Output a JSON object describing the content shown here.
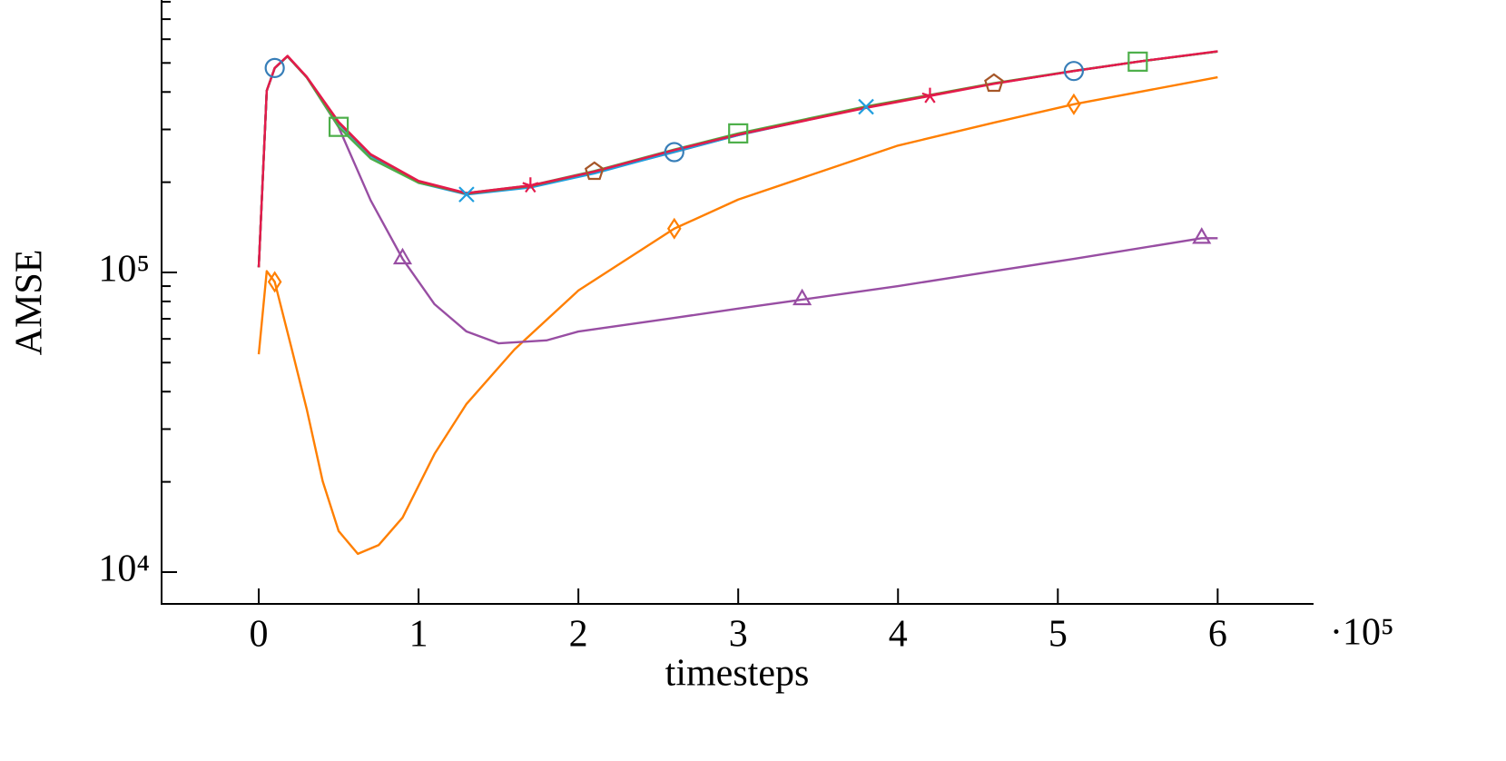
{
  "chart_data": {
    "type": "line",
    "xlabel": "timesteps",
    "ylabel": "AMSE",
    "x_scale_label": "·10⁵",
    "xlim": [
      -60800,
      660000
    ],
    "ylim": [
      7830,
      811000
    ],
    "yscale": "log",
    "xticks": [
      0,
      {
        "value": 100000,
        "label": "1"
      },
      {
        "value": 200000,
        "label": "2"
      },
      {
        "value": 300000,
        "label": "3"
      },
      {
        "value": 400000,
        "label": "4"
      },
      {
        "value": 500000,
        "label": "5"
      },
      {
        "value": 600000,
        "label": "6"
      }
    ],
    "yticks": [
      {
        "value": 10000,
        "label": "10⁴"
      },
      {
        "value": 100000,
        "label": "10⁵"
      }
    ],
    "yminorticks": [
      20000,
      30000,
      40000,
      50000,
      60000,
      70000,
      80000,
      90000,
      200000,
      300000,
      400000,
      500000,
      600000,
      700000,
      800000
    ],
    "series": [
      {
        "color": "#ff7f00",
        "marker": "diamond",
        "marker_indices": [
          2,
          14,
          18
        ],
        "x": [
          0,
          5000,
          10000,
          20000,
          30000,
          40000,
          50000,
          62000,
          75000,
          90000,
          110000,
          130000,
          160000,
          200000,
          260000,
          300000,
          400000,
          460000,
          510000,
          600000
        ],
        "values": [
          53300,
          101000,
          93000,
          57300,
          35000,
          20100,
          13700,
          11500,
          12300,
          15200,
          24800,
          36400,
          55300,
          87000,
          140000,
          175000,
          265000,
          316000,
          364000,
          448000
        ]
      },
      {
        "color": "#984ea3",
        "marker": "triangle",
        "marker_indices": [
          7,
          15,
          19
        ],
        "x": [
          0,
          5000,
          10000,
          18000,
          30000,
          50000,
          70000,
          90000,
          110000,
          130000,
          150000,
          180000,
          200000,
          260000,
          300000,
          340000,
          400000,
          460000,
          510000,
          590000,
          600000
        ],
        "values": [
          104000,
          404000,
          481000,
          526000,
          448000,
          305000,
          174000,
          111000,
          78300,
          63500,
          58000,
          59300,
          63500,
          70500,
          75700,
          81100,
          90000,
          101000,
          111000,
          130000,
          130000
        ]
      },
      {
        "color": "#377eb8",
        "marker": "circle",
        "marker_indices": [
          2,
          11,
          16
        ],
        "x": [
          0,
          5000,
          10000,
          18000,
          30000,
          50000,
          70000,
          100000,
          130000,
          170000,
          210000,
          260000,
          300000,
          380000,
          420000,
          460000,
          510000,
          550000,
          600000
        ],
        "values": [
          104000,
          404000,
          481000,
          526000,
          448000,
          316000,
          247000,
          201000,
          183000,
          194000,
          215000,
          252000,
          287000,
          356000,
          390000,
          427000,
          470000,
          505000,
          546000
        ]
      },
      {
        "color": "#1f9ede",
        "marker": "cross",
        "marker_indices": [
          8,
          13
        ],
        "x": [
          0,
          5000,
          10000,
          18000,
          30000,
          50000,
          70000,
          100000,
          130000,
          170000,
          210000,
          260000,
          300000,
          380000,
          420000,
          460000,
          510000,
          550000,
          600000
        ],
        "values": [
          104000,
          404000,
          481000,
          526000,
          448000,
          314000,
          245000,
          199000,
          182000,
          192000,
          214000,
          253000,
          287000,
          357000,
          390000,
          427000,
          470000,
          505000,
          546000
        ]
      },
      {
        "color": "#4daf4a",
        "marker": "square",
        "marker_indices": [
          5,
          12,
          17
        ],
        "x": [
          0,
          5000,
          10000,
          18000,
          30000,
          50000,
          70000,
          100000,
          130000,
          170000,
          210000,
          260000,
          300000,
          380000,
          420000,
          460000,
          510000,
          550000,
          600000
        ],
        "values": [
          104000,
          404000,
          481000,
          526000,
          448000,
          306000,
          240000,
          199000,
          184000,
          195000,
          218000,
          257000,
          291000,
          358000,
          391000,
          428000,
          471000,
          505000,
          546000
        ]
      },
      {
        "color": "#a65628",
        "marker": "pentagon",
        "marker_indices": [
          10,
          15
        ],
        "x": [
          0,
          5000,
          10000,
          18000,
          30000,
          50000,
          70000,
          100000,
          130000,
          170000,
          210000,
          260000,
          300000,
          380000,
          420000,
          460000,
          510000,
          550000,
          600000
        ],
        "values": [
          104000,
          404000,
          481000,
          526000,
          448000,
          316000,
          247000,
          201000,
          183000,
          194000,
          217000,
          256000,
          289000,
          356000,
          390000,
          427000,
          470000,
          505000,
          546000
        ]
      },
      {
        "color": "#e41a4c",
        "marker": "asterisk",
        "marker_indices": [
          9,
          14
        ],
        "x": [
          0,
          5000,
          10000,
          18000,
          30000,
          50000,
          70000,
          100000,
          130000,
          170000,
          210000,
          260000,
          300000,
          380000,
          420000,
          460000,
          510000,
          550000,
          600000
        ],
        "values": [
          104000,
          404000,
          481000,
          528000,
          450000,
          318000,
          248000,
          202000,
          184000,
          195000,
          217000,
          256000,
          288000,
          354000,
          388000,
          426000,
          470000,
          505000,
          547000
        ]
      }
    ]
  }
}
